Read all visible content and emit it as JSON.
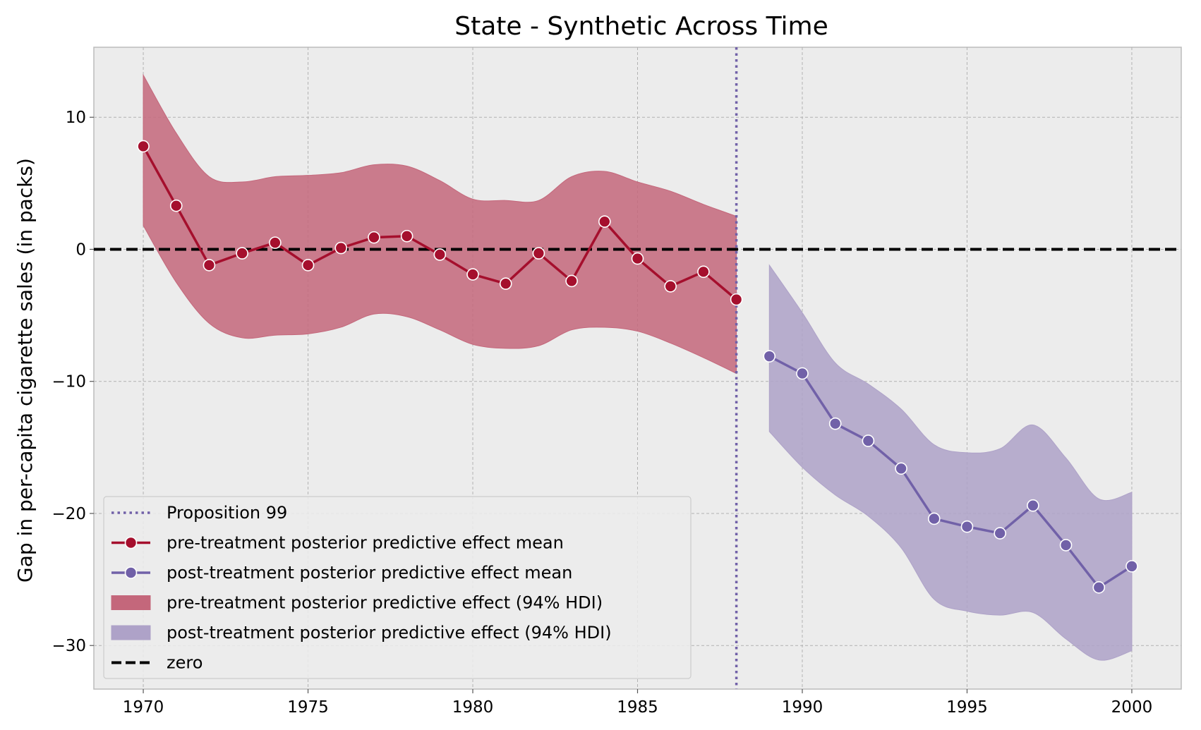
{
  "chart_data": {
    "type": "line",
    "title": "State - Synthetic Across Time",
    "xlabel": "",
    "ylabel": "Gap in per-capita cigarette sales (in packs)",
    "xlim": [
      1968.5,
      2001.5
    ],
    "ylim": [
      -33.3,
      15.3
    ],
    "xticks": [
      1970,
      1975,
      1980,
      1985,
      1990,
      1995,
      2000
    ],
    "yticks": [
      10,
      0,
      -10,
      -20,
      -30
    ],
    "ytick_labels": [
      "10",
      "0",
      "−10",
      "−20",
      "−30"
    ],
    "grid": true,
    "legend_position": "lower-left",
    "treatment_line": {
      "x": 1988,
      "label": "Proposition 99",
      "color": "#7161a8",
      "style": "dotted"
    },
    "zero_line": {
      "y": 0,
      "label": "zero",
      "color": "#000000",
      "style": "dashed"
    },
    "series": [
      {
        "name": "pre-treatment posterior predictive effect mean",
        "color": "#a50f2d",
        "x": [
          1970,
          1971,
          1972,
          1973,
          1974,
          1975,
          1976,
          1977,
          1978,
          1979,
          1980,
          1981,
          1982,
          1983,
          1984,
          1985,
          1986,
          1987,
          1988
        ],
        "values": [
          7.8,
          3.3,
          -1.2,
          -0.3,
          0.5,
          -1.2,
          0.1,
          0.9,
          1.0,
          -0.4,
          -1.9,
          -2.6,
          -0.3,
          -2.4,
          2.1,
          -0.7,
          -2.8,
          -1.7,
          -3.8
        ]
      },
      {
        "name": "post-treatment posterior predictive effect mean",
        "color": "#7161a8",
        "x": [
          1989,
          1990,
          1991,
          1992,
          1993,
          1994,
          1995,
          1996,
          1997,
          1998,
          1999,
          2000
        ],
        "values": [
          -8.1,
          -9.4,
          -13.2,
          -14.5,
          -16.6,
          -20.4,
          -21.0,
          -21.5,
          -19.4,
          -22.4,
          -25.6,
          -24.0
        ]
      }
    ],
    "bands": [
      {
        "name": "pre-treatment posterior predictive effect (94% HDI)",
        "color": "#c4677b",
        "x": [
          1970,
          1971,
          1972,
          1973,
          1974,
          1975,
          1976,
          1977,
          1978,
          1979,
          1980,
          1981,
          1982,
          1983,
          1984,
          1985,
          1986,
          1987,
          1988
        ],
        "upper": [
          13.2,
          8.8,
          5.5,
          5.1,
          5.5,
          5.6,
          5.8,
          6.4,
          6.3,
          5.2,
          3.8,
          3.7,
          3.7,
          5.5,
          5.9,
          5.1,
          4.4,
          3.4,
          2.5
        ],
        "lower": [
          1.8,
          -2.5,
          -5.6,
          -6.7,
          -6.5,
          -6.4,
          -5.9,
          -4.9,
          -5.1,
          -6.1,
          -7.2,
          -7.5,
          -7.3,
          -6.1,
          -5.9,
          -6.2,
          -7.1,
          -8.2,
          -9.4
        ]
      },
      {
        "name": "post-treatment posterior predictive effect (94% HDI)",
        "color": "#aea2c8",
        "x": [
          1989,
          1990,
          1991,
          1992,
          1993,
          1994,
          1995,
          1996,
          1997,
          1998,
          1999,
          2000
        ],
        "upper": [
          -1.2,
          -4.8,
          -8.6,
          -10.2,
          -12.1,
          -14.8,
          -15.4,
          -15.1,
          -13.3,
          -15.8,
          -18.9,
          -18.4
        ],
        "lower": [
          -13.8,
          -16.5,
          -18.6,
          -20.2,
          -22.6,
          -26.5,
          -27.4,
          -27.7,
          -27.5,
          -29.5,
          -31.1,
          -30.4
        ]
      }
    ]
  }
}
